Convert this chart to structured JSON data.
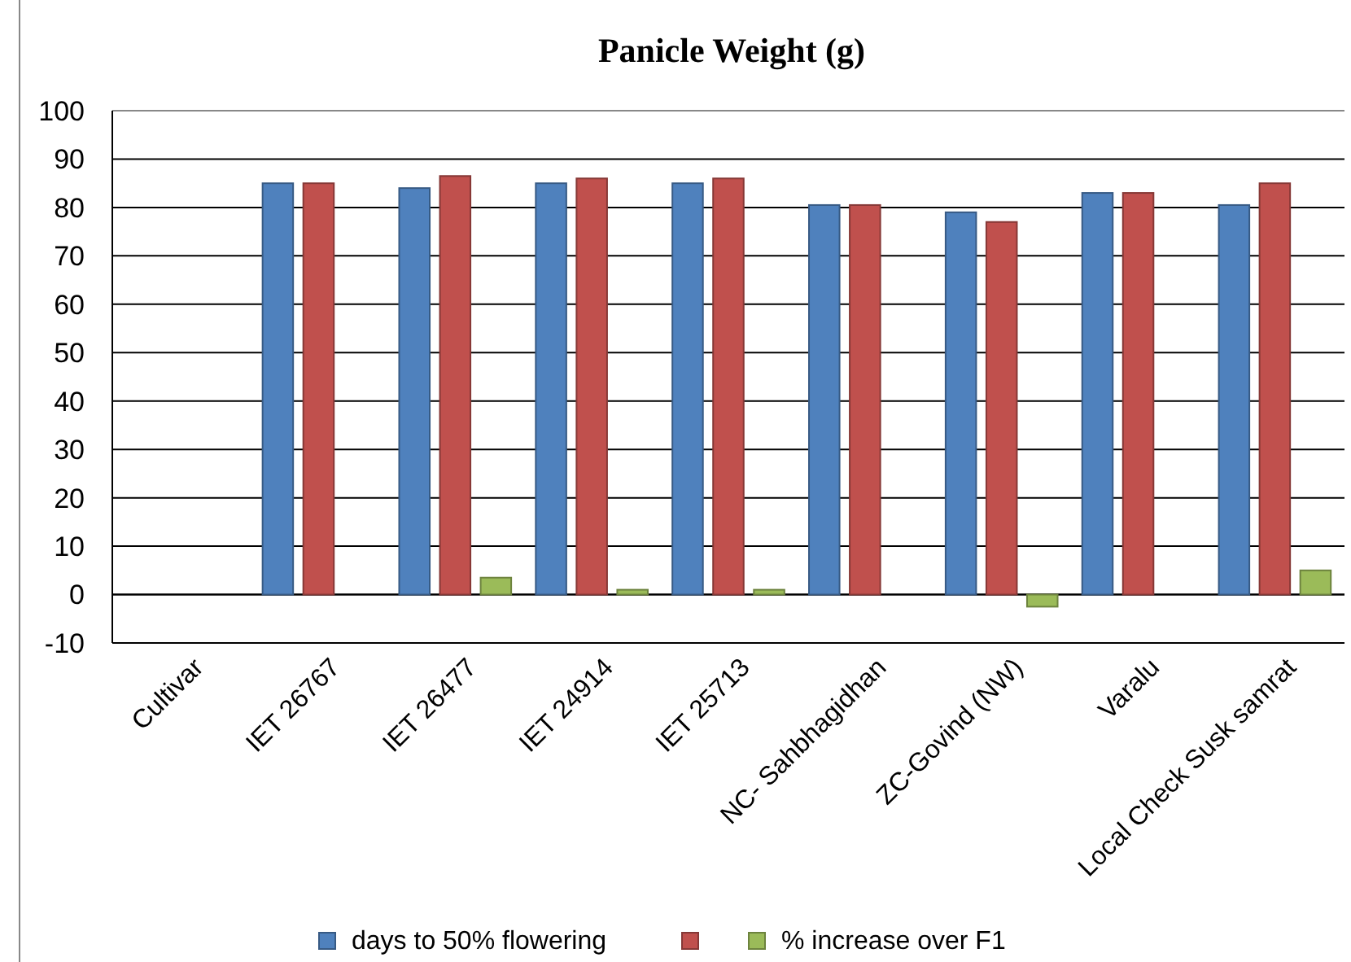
{
  "chart_data": {
    "type": "bar",
    "title": "Panicle Weight (g)",
    "categories": [
      "Cultivar",
      "IET 26767",
      "IET 26477",
      "IET 24914",
      "IET 25713",
      "NC- Sahbhagidhan",
      "ZC-Govind (NW)",
      "Varalu",
      "Local Check Susk samrat"
    ],
    "series": [
      {
        "name": "days to 50% flowering",
        "color": "#4f81bd",
        "values": [
          null,
          85,
          84,
          85,
          85,
          80.5,
          79,
          83,
          80.5
        ]
      },
      {
        "color": "#c0504d",
        "values": [
          null,
          85,
          86.5,
          86,
          86,
          80.5,
          77,
          83,
          85
        ]
      },
      {
        "name": "% increase over F1",
        "color": "#9bbb59",
        "values": [
          null,
          null,
          3.5,
          1,
          1,
          null,
          -2.5,
          null,
          5
        ]
      }
    ],
    "ylim": [
      -10,
      100
    ],
    "yticks": [
      -10,
      0,
      10,
      20,
      30,
      40,
      50,
      60,
      70,
      80,
      90,
      100
    ],
    "grid": "y",
    "legend": "bottom"
  }
}
